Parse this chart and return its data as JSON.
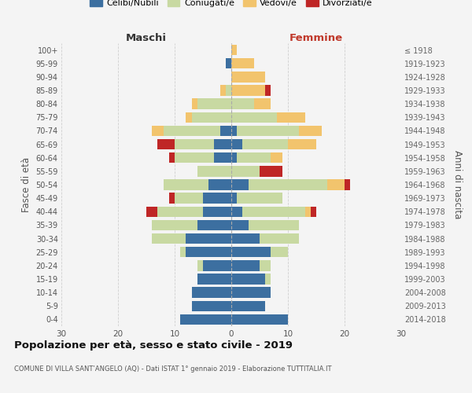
{
  "age_groups": [
    "0-4",
    "5-9",
    "10-14",
    "15-19",
    "20-24",
    "25-29",
    "30-34",
    "35-39",
    "40-44",
    "45-49",
    "50-54",
    "55-59",
    "60-64",
    "65-69",
    "70-74",
    "75-79",
    "80-84",
    "85-89",
    "90-94",
    "95-99",
    "100+"
  ],
  "birth_years": [
    "2014-2018",
    "2009-2013",
    "2004-2008",
    "1999-2003",
    "1994-1998",
    "1989-1993",
    "1984-1988",
    "1979-1983",
    "1974-1978",
    "1969-1973",
    "1964-1968",
    "1959-1963",
    "1954-1958",
    "1949-1953",
    "1944-1948",
    "1939-1943",
    "1934-1938",
    "1929-1933",
    "1924-1928",
    "1919-1923",
    "≤ 1918"
  ],
  "maschi": {
    "celibi": [
      9,
      7,
      7,
      6,
      5,
      8,
      8,
      6,
      5,
      5,
      4,
      0,
      3,
      3,
      2,
      0,
      0,
      0,
      0,
      1,
      0
    ],
    "coniugati": [
      0,
      0,
      0,
      0,
      1,
      1,
      6,
      8,
      8,
      5,
      8,
      6,
      7,
      7,
      10,
      7,
      6,
      1,
      0,
      0,
      0
    ],
    "vedovi": [
      0,
      0,
      0,
      0,
      0,
      0,
      0,
      0,
      0,
      0,
      0,
      0,
      0,
      0,
      2,
      1,
      1,
      1,
      0,
      0,
      0
    ],
    "divorziati": [
      0,
      0,
      0,
      0,
      0,
      0,
      0,
      0,
      2,
      1,
      0,
      0,
      1,
      3,
      0,
      0,
      0,
      0,
      0,
      0,
      0
    ]
  },
  "femmine": {
    "nubili": [
      10,
      6,
      7,
      6,
      5,
      7,
      5,
      3,
      2,
      1,
      3,
      0,
      1,
      2,
      1,
      0,
      0,
      0,
      0,
      0,
      0
    ],
    "coniugate": [
      0,
      0,
      0,
      1,
      2,
      3,
      7,
      9,
      11,
      8,
      14,
      5,
      6,
      8,
      11,
      8,
      4,
      0,
      0,
      0,
      0
    ],
    "vedove": [
      0,
      0,
      0,
      0,
      0,
      0,
      0,
      0,
      1,
      0,
      3,
      0,
      2,
      5,
      4,
      5,
      3,
      6,
      6,
      4,
      1
    ],
    "divorziate": [
      0,
      0,
      0,
      0,
      0,
      0,
      0,
      0,
      1,
      0,
      1,
      4,
      0,
      0,
      0,
      0,
      0,
      1,
      0,
      0,
      0
    ]
  },
  "colors": {
    "celibi_nubili": "#3c6fa0",
    "coniugati": "#c8d9a2",
    "vedovi": "#f2c46d",
    "divorziati": "#bf2626"
  },
  "xlim": 30,
  "title": "Popolazione per età, sesso e stato civile - 2019",
  "subtitle": "COMUNE DI VILLA SANT’ANGELO (AQ) - Dati ISTAT 1° gennaio 2019 - Elaborazione TUTTITALIA.IT",
  "ylabel_left": "Fasce di età",
  "ylabel_right": "Anni di nascita",
  "xlabel_left": "Maschi",
  "xlabel_right": "Femmine",
  "legend_labels": [
    "Celibi/Nubili",
    "Coniugati/e",
    "Vedovi/e",
    "Divorziati/e"
  ],
  "background_color": "#f4f4f4",
  "grid_color": "#cccccc"
}
